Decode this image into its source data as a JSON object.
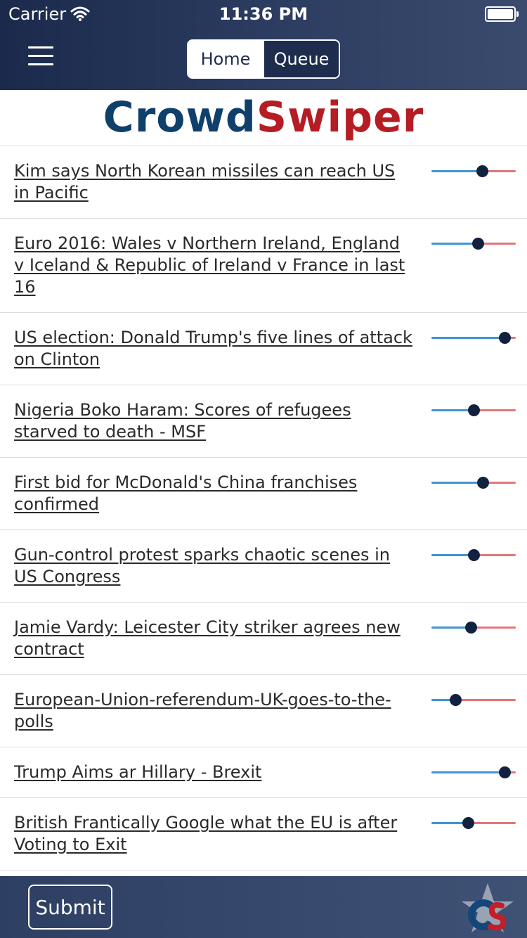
{
  "status_bar": {
    "carrier": "Carrier",
    "time": "11:36 PM"
  },
  "nav": {
    "tabs": [
      "Home",
      "Queue"
    ],
    "selected": "Queue"
  },
  "logo": {
    "part1": "Crowd",
    "part2": "Swiper"
  },
  "colors": {
    "nav_dark": "#1b2a4c",
    "logo_blue": "#0f3f6b",
    "logo_red": "#b51c24",
    "slider_blue": "#3d95d6",
    "slider_red": "#e37676",
    "knob": "#12213f"
  },
  "news": [
    {
      "title": "Kim says North Korean missiles can reach US in Pacific",
      "slider_value": 0.6
    },
    {
      "title": "Euro 2016: Wales v Northern Ireland, England v Iceland & Republic of Ireland v France in last 16",
      "slider_value": 0.55
    },
    {
      "title": "US election: Donald Trump's five lines of attack on Clinton",
      "slider_value": 0.87
    },
    {
      "title": "Nigeria Boko Haram: Scores of refugees starved to death - MSF",
      "slider_value": 0.5
    },
    {
      "title": "First bid for McDonald's China franchises confirmed",
      "slider_value": 0.61
    },
    {
      "title": "Gun-control protest sparks chaotic scenes in US Congress",
      "slider_value": 0.5
    },
    {
      "title": "Jamie Vardy: Leicester City striker agrees new contract",
      "slider_value": 0.47
    },
    {
      "title": "European-Union-referendum-UK-goes-to-the-polls",
      "slider_value": 0.28
    },
    {
      "title": "Trump Aims ar Hillary - Brexit",
      "slider_value": 0.87
    },
    {
      "title": "British Frantically Google what the EU is after Voting to Exit",
      "slider_value": 0.43
    }
  ],
  "footer": {
    "submit_label": "Submit",
    "brand_icon": "star-cs-logo-icon"
  }
}
